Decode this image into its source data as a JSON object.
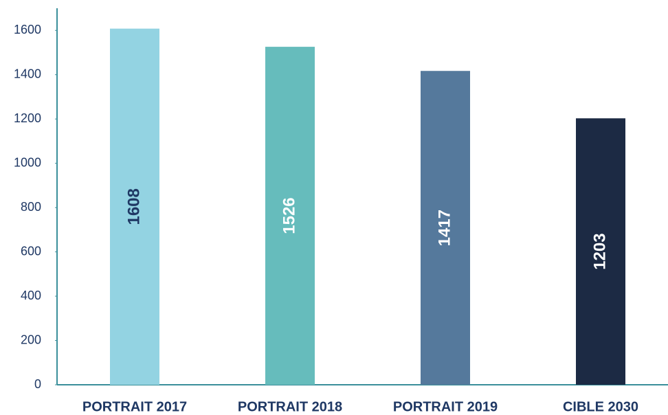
{
  "chart_data": {
    "type": "bar",
    "categories": [
      "PORTRAIT 2017",
      "PORTRAIT 2018",
      "PORTRAIT 2019",
      "CIBLE 2030"
    ],
    "values": [
      1608,
      1526,
      1417,
      1203
    ],
    "colors": [
      "#93d3e2",
      "#66bcbc",
      "#55799c",
      "#1c2a44"
    ],
    "label_colors": [
      "#1f3864",
      "#ffffff",
      "#ffffff",
      "#ffffff"
    ],
    "ylim": [
      0,
      1700
    ],
    "yticks": [
      0,
      200,
      400,
      600,
      800,
      1000,
      1200,
      1400,
      1600
    ]
  }
}
